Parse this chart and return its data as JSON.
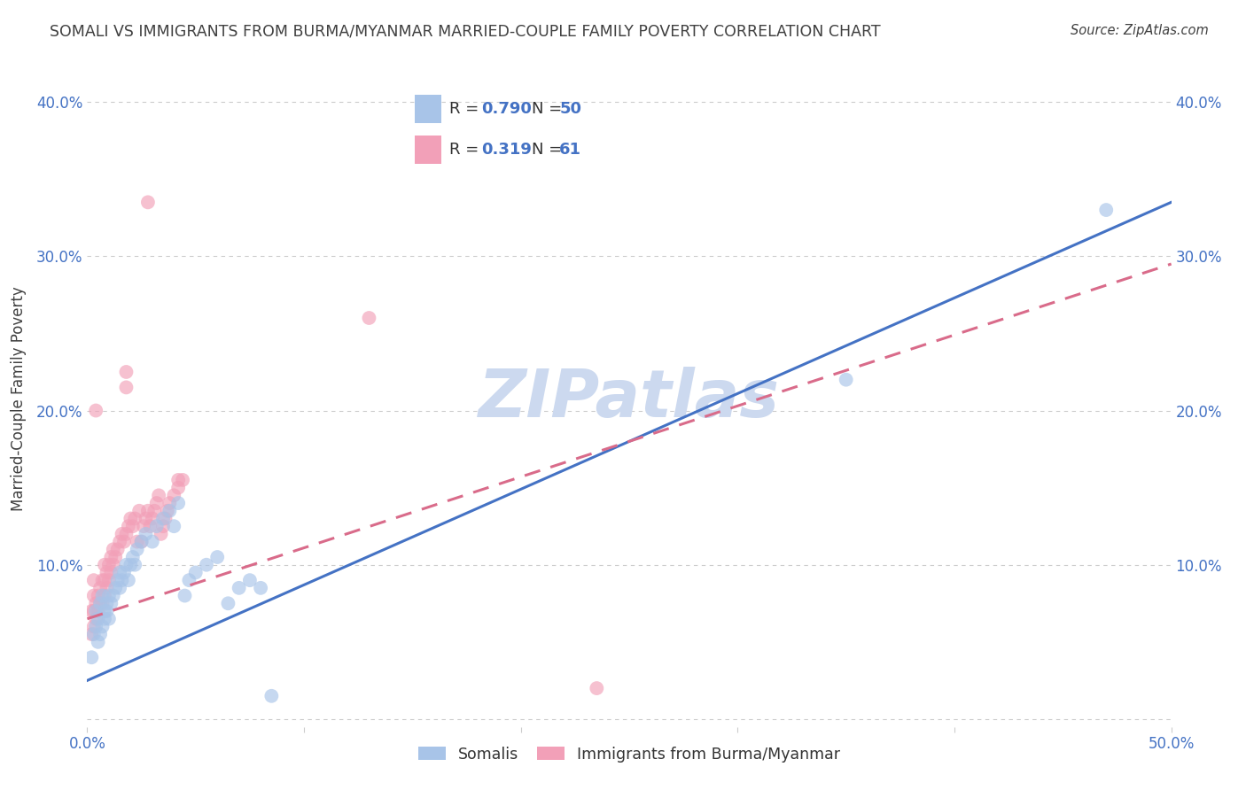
{
  "title": "SOMALI VS IMMIGRANTS FROM BURMA/MYANMAR MARRIED-COUPLE FAMILY POVERTY CORRELATION CHART",
  "source": "Source: ZipAtlas.com",
  "ylabel": "Married-Couple Family Poverty",
  "xlim": [
    0.0,
    0.5
  ],
  "ylim": [
    -0.005,
    0.42
  ],
  "xticks": [
    0.0,
    0.1,
    0.2,
    0.3,
    0.4,
    0.5
  ],
  "yticks": [
    0.0,
    0.1,
    0.2,
    0.3,
    0.4
  ],
  "xticklabels": [
    "0.0%",
    "",
    "",
    "",
    "",
    "50.0%"
  ],
  "yticklabels": [
    "",
    "10.0%",
    "20.0%",
    "30.0%",
    "40.0%"
  ],
  "right_yticklabels": [
    "",
    "10.0%",
    "20.0%",
    "30.0%",
    "40.0%"
  ],
  "somali_color": "#a8c4e8",
  "burma_color": "#f2a0b8",
  "somali_line_color": "#4472c4",
  "burma_line_color": "#d96b8a",
  "watermark": "ZIPatlas",
  "watermark_color": "#ccd9ef",
  "background_color": "#ffffff",
  "grid_color": "#cccccc",
  "title_color": "#404040",
  "axis_label_color": "#4472c4",
  "somali_line": {
    "x0": 0.0,
    "y0": 0.025,
    "x1": 0.5,
    "y1": 0.335
  },
  "burma_line": {
    "x0": 0.0,
    "y0": 0.065,
    "x1": 0.5,
    "y1": 0.295
  },
  "somali_scatter": [
    [
      0.002,
      0.04
    ],
    [
      0.003,
      0.055
    ],
    [
      0.004,
      0.06
    ],
    [
      0.004,
      0.07
    ],
    [
      0.005,
      0.05
    ],
    [
      0.005,
      0.065
    ],
    [
      0.006,
      0.055
    ],
    [
      0.006,
      0.075
    ],
    [
      0.007,
      0.06
    ],
    [
      0.007,
      0.08
    ],
    [
      0.008,
      0.065
    ],
    [
      0.008,
      0.07
    ],
    [
      0.009,
      0.07
    ],
    [
      0.009,
      0.075
    ],
    [
      0.01,
      0.065
    ],
    [
      0.01,
      0.08
    ],
    [
      0.011,
      0.075
    ],
    [
      0.012,
      0.08
    ],
    [
      0.013,
      0.085
    ],
    [
      0.014,
      0.09
    ],
    [
      0.015,
      0.085
    ],
    [
      0.015,
      0.095
    ],
    [
      0.016,
      0.09
    ],
    [
      0.017,
      0.095
    ],
    [
      0.018,
      0.1
    ],
    [
      0.019,
      0.09
    ],
    [
      0.02,
      0.1
    ],
    [
      0.021,
      0.105
    ],
    [
      0.022,
      0.1
    ],
    [
      0.023,
      0.11
    ],
    [
      0.025,
      0.115
    ],
    [
      0.027,
      0.12
    ],
    [
      0.03,
      0.115
    ],
    [
      0.032,
      0.125
    ],
    [
      0.035,
      0.13
    ],
    [
      0.038,
      0.135
    ],
    [
      0.04,
      0.125
    ],
    [
      0.042,
      0.14
    ],
    [
      0.045,
      0.08
    ],
    [
      0.047,
      0.09
    ],
    [
      0.05,
      0.095
    ],
    [
      0.055,
      0.1
    ],
    [
      0.06,
      0.105
    ],
    [
      0.065,
      0.075
    ],
    [
      0.07,
      0.085
    ],
    [
      0.075,
      0.09
    ],
    [
      0.08,
      0.085
    ],
    [
      0.085,
      0.015
    ],
    [
      0.35,
      0.22
    ],
    [
      0.47,
      0.33
    ]
  ],
  "burma_scatter": [
    [
      0.002,
      0.055
    ],
    [
      0.003,
      0.06
    ],
    [
      0.003,
      0.07
    ],
    [
      0.004,
      0.065
    ],
    [
      0.004,
      0.075
    ],
    [
      0.005,
      0.07
    ],
    [
      0.005,
      0.08
    ],
    [
      0.006,
      0.075
    ],
    [
      0.006,
      0.085
    ],
    [
      0.007,
      0.075
    ],
    [
      0.007,
      0.09
    ],
    [
      0.008,
      0.08
    ],
    [
      0.008,
      0.09
    ],
    [
      0.008,
      0.1
    ],
    [
      0.009,
      0.085
    ],
    [
      0.009,
      0.095
    ],
    [
      0.01,
      0.09
    ],
    [
      0.01,
      0.1
    ],
    [
      0.011,
      0.095
    ],
    [
      0.011,
      0.105
    ],
    [
      0.012,
      0.1
    ],
    [
      0.012,
      0.11
    ],
    [
      0.013,
      0.105
    ],
    [
      0.014,
      0.11
    ],
    [
      0.015,
      0.115
    ],
    [
      0.016,
      0.12
    ],
    [
      0.017,
      0.115
    ],
    [
      0.018,
      0.12
    ],
    [
      0.019,
      0.125
    ],
    [
      0.02,
      0.13
    ],
    [
      0.021,
      0.125
    ],
    [
      0.022,
      0.13
    ],
    [
      0.023,
      0.115
    ],
    [
      0.024,
      0.135
    ],
    [
      0.025,
      0.115
    ],
    [
      0.026,
      0.125
    ],
    [
      0.027,
      0.13
    ],
    [
      0.028,
      0.135
    ],
    [
      0.029,
      0.125
    ],
    [
      0.03,
      0.13
    ],
    [
      0.031,
      0.135
    ],
    [
      0.032,
      0.14
    ],
    [
      0.033,
      0.145
    ],
    [
      0.034,
      0.12
    ],
    [
      0.035,
      0.125
    ],
    [
      0.036,
      0.13
    ],
    [
      0.037,
      0.135
    ],
    [
      0.038,
      0.14
    ],
    [
      0.04,
      0.145
    ],
    [
      0.042,
      0.15
    ],
    [
      0.044,
      0.155
    ],
    [
      0.002,
      0.07
    ],
    [
      0.003,
      0.08
    ],
    [
      0.003,
      0.09
    ],
    [
      0.004,
      0.2
    ],
    [
      0.018,
      0.215
    ],
    [
      0.018,
      0.225
    ],
    [
      0.028,
      0.335
    ],
    [
      0.13,
      0.26
    ],
    [
      0.042,
      0.155
    ],
    [
      0.235,
      0.02
    ]
  ]
}
